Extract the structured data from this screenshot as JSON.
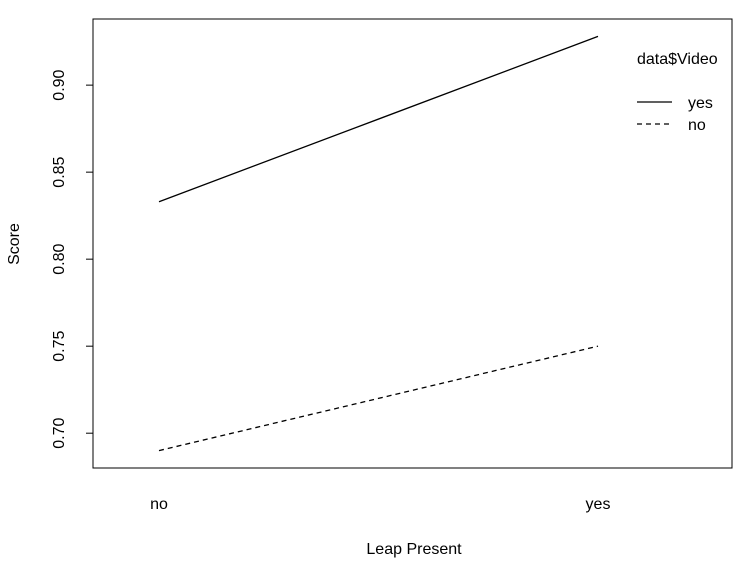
{
  "chart_data": {
    "type": "line",
    "xlabel": "Leap Present",
    "ylabel": "Score",
    "categories": [
      "no",
      "yes"
    ],
    "ylim": [
      0.68,
      0.938
    ],
    "yticks": [
      "0.70",
      "0.75",
      "0.80",
      "0.85",
      "0.90"
    ],
    "grid": false,
    "legend": {
      "title": "data$Video",
      "placement": "top-right",
      "entries": [
        "yes",
        "no"
      ]
    },
    "series": [
      {
        "name": "yes",
        "values": [
          0.833,
          0.928
        ],
        "line_style": "solid"
      },
      {
        "name": "no",
        "values": [
          0.69,
          0.75
        ],
        "line_style": "dashed"
      }
    ],
    "colors": {
      "lines": "#000000",
      "axes": "#000000"
    }
  }
}
